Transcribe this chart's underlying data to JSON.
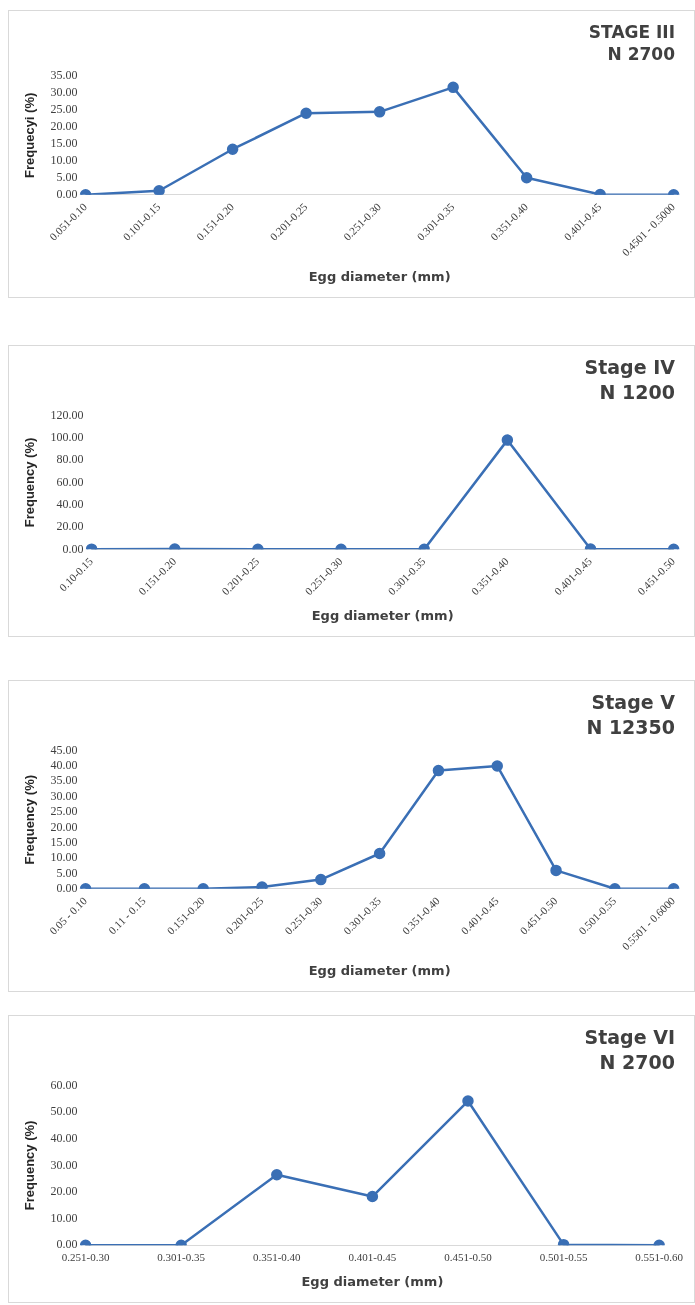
{
  "chart_data": [
    {
      "type": "line",
      "title": "STAGE III",
      "subtitle": "N 2700",
      "xlabel": "Egg diameter (mm)",
      "ylabel": "Frequecyi (%)",
      "categories": [
        "0.051-0.10",
        "0.101-0.15",
        "0.151-0.20",
        "0.201-0.25",
        "0.251-0.30",
        "0.301-0.35",
        "0.351-0.40",
        "0.401-0.45",
        "0.4501 - 0.5000"
      ],
      "series": [
        {
          "color": "#3a6fb5",
          "values": [
            0,
            1.2,
            13.4,
            24,
            24.4,
            31.6,
            5,
            0.1,
            0
          ]
        }
      ],
      "ylim": [
        0,
        35
      ],
      "yticks": [
        {
          "value": 0,
          "label": "0.00"
        },
        {
          "value": 5,
          "label": "5.00"
        },
        {
          "value": 10,
          "label": "10.00"
        },
        {
          "value": 15,
          "label": "15.00"
        },
        {
          "value": 20,
          "label": "20.00"
        },
        {
          "value": 25,
          "label": "25.00"
        },
        {
          "value": 30,
          "label": "30.00"
        },
        {
          "value": 35,
          "label": "35.00"
        }
      ],
      "marker": "circle",
      "grid": false,
      "legend": false
    },
    {
      "type": "line",
      "title": "Stage IV",
      "subtitle": "N 1200",
      "xlabel": "Egg diameter (mm)",
      "ylabel": "Frequency (%)",
      "categories": [
        "0.10-0.15",
        "0.151-0.20",
        "0.201-0.25",
        "0.251-0.30",
        "0.301-0.35",
        "0.351-0.40",
        "0.401-0.45",
        "0.451-0.50"
      ],
      "series": [
        {
          "color": "#3a6fb5",
          "values": [
            0.2,
            0.3,
            0,
            0,
            0,
            98,
            0.3,
            0
          ]
        }
      ],
      "ylim": [
        0,
        120
      ],
      "yticks": [
        {
          "value": 0,
          "label": "0.00"
        },
        {
          "value": 20,
          "label": "20.00"
        },
        {
          "value": 40,
          "label": "40.00"
        },
        {
          "value": 60,
          "label": "60.00"
        },
        {
          "value": 80,
          "label": "80.00"
        },
        {
          "value": 100,
          "label": "100.00"
        },
        {
          "value": 120,
          "label": "120.00"
        }
      ],
      "marker": "circle",
      "grid": false,
      "legend": false
    },
    {
      "type": "line",
      "title": "Stage V",
      "subtitle": "N 12350",
      "xlabel": "Egg diameter (mm)",
      "ylabel": "Frequency (%)",
      "categories": [
        "0.05 - 0.10",
        "0.11 - 0.15",
        "0.151-0.20",
        "0.201-0.25",
        "0.251-0.30",
        "0.301-0.35",
        "0.351-0.40",
        "0.401-0.45",
        "0.451-0.50",
        "0.501-0.55",
        "0.5501 - 0.6000"
      ],
      "series": [
        {
          "color": "#3a6fb5",
          "values": [
            0,
            0,
            0,
            0.6,
            3,
            11.5,
            38.5,
            40,
            6,
            0,
            0
          ]
        }
      ],
      "ylim": [
        0,
        45
      ],
      "yticks": [
        {
          "value": 0,
          "label": "0.00"
        },
        {
          "value": 5,
          "label": "5.00"
        },
        {
          "value": 10,
          "label": "10.00"
        },
        {
          "value": 15,
          "label": "15.00"
        },
        {
          "value": 20,
          "label": "20.00"
        },
        {
          "value": 25,
          "label": "25.00"
        },
        {
          "value": 30,
          "label": "30.00"
        },
        {
          "value": 35,
          "label": "35.00"
        },
        {
          "value": 40,
          "label": "40.00"
        },
        {
          "value": 45,
          "label": "45.00"
        }
      ],
      "marker": "circle",
      "grid": false,
      "legend": false
    },
    {
      "type": "line",
      "title": "Stage VI",
      "subtitle": "N 2700",
      "xlabel": "Egg diameter (mm)",
      "ylabel": "Frequency (%)",
      "categories": [
        "0.251-0.30",
        "0.301-0.35",
        "0.351-0.40",
        "0.401-0.45",
        "0.451-0.50",
        "0.501-0.55",
        "0.551-0.60"
      ],
      "series": [
        {
          "color": "#3a6fb5",
          "values": [
            0,
            0,
            26.5,
            18.3,
            54.2,
            0.2,
            0
          ]
        }
      ],
      "ylim": [
        0,
        60
      ],
      "yticks": [
        {
          "value": 0,
          "label": "0.00"
        },
        {
          "value": 10,
          "label": "10.00"
        },
        {
          "value": 20,
          "label": "20.00"
        },
        {
          "value": 30,
          "label": "30.00"
        },
        {
          "value": 40,
          "label": "40.00"
        },
        {
          "value": 50,
          "label": "50.00"
        },
        {
          "value": 60,
          "label": "60.00"
        }
      ],
      "marker": "circle",
      "grid": false,
      "legend": false
    }
  ]
}
